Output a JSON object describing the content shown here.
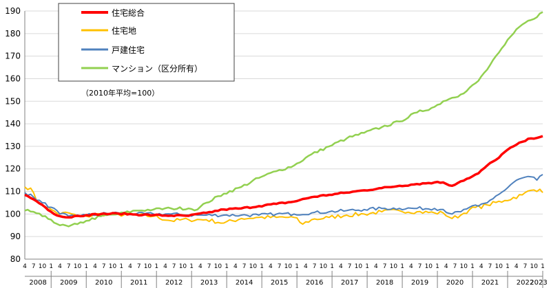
{
  "chart_data": {
    "type": "line",
    "title": "",
    "xlabel": "",
    "ylabel": "",
    "ylim": [
      80,
      190
    ],
    "yticks": [
      80,
      90,
      100,
      110,
      120,
      130,
      140,
      150,
      160,
      170,
      180,
      190
    ],
    "grid": "horizontal",
    "legend_position": "top-left",
    "note": "（2010年平均=100）",
    "month_tick_labels": [
      "4",
      "7",
      "10"
    ],
    "years": [
      "2008",
      "2009",
      "2010",
      "2011",
      "2012",
      "2013",
      "2014",
      "2015",
      "2016",
      "2017",
      "2018",
      "2019",
      "2020",
      "2021",
      "2022",
      "2023"
    ],
    "last_year_label": "2023",
    "last_year_month": "1",
    "x_start": "2008-04",
    "x_end": "2023-01",
    "series": [
      {
        "name": "住宅総合",
        "color": "#ff0000",
        "width": 3.5,
        "keypoints": [
          [
            "2008-04",
            108.5
          ],
          [
            "2008-07",
            106.5
          ],
          [
            "2008-10",
            104
          ],
          [
            "2009-01",
            101
          ],
          [
            "2009-04",
            99
          ],
          [
            "2009-07",
            98.5
          ],
          [
            "2009-10",
            99.2
          ],
          [
            "2010-01",
            99.5
          ],
          [
            "2010-06",
            100
          ],
          [
            "2010-12",
            100.2
          ],
          [
            "2011-06",
            99.8
          ],
          [
            "2011-12",
            99.5
          ],
          [
            "2012-06",
            99.3
          ],
          [
            "2012-12",
            99.2
          ],
          [
            "2013-06",
            100.5
          ],
          [
            "2013-12",
            102
          ],
          [
            "2014-06",
            102.5
          ],
          [
            "2014-12",
            103.5
          ],
          [
            "2015-06",
            104.5
          ],
          [
            "2015-12",
            105.5
          ],
          [
            "2016-06",
            107.5
          ],
          [
            "2016-12",
            108.5
          ],
          [
            "2017-06",
            109.5
          ],
          [
            "2017-12",
            110.5
          ],
          [
            "2018-06",
            111.5
          ],
          [
            "2018-12",
            112.5
          ],
          [
            "2019-06",
            113.3
          ],
          [
            "2019-12",
            114
          ],
          [
            "2020-03",
            114
          ],
          [
            "2020-06",
            112.5
          ],
          [
            "2020-09",
            114.5
          ],
          [
            "2020-12",
            116
          ],
          [
            "2021-03",
            118
          ],
          [
            "2021-06",
            121.5
          ],
          [
            "2021-09",
            124
          ],
          [
            "2021-12",
            127.5
          ],
          [
            "2022-03",
            130
          ],
          [
            "2022-06",
            132
          ],
          [
            "2022-09",
            133.5
          ],
          [
            "2023-01",
            134.5
          ]
        ]
      },
      {
        "name": "住宅地",
        "color": "#ffc000",
        "width": 2,
        "keypoints": [
          [
            "2008-04",
            112
          ],
          [
            "2008-06",
            111.5
          ],
          [
            "2008-08",
            106
          ],
          [
            "2008-10",
            104
          ],
          [
            "2009-01",
            102
          ],
          [
            "2009-04",
            100
          ],
          [
            "2009-07",
            100.5
          ],
          [
            "2009-10",
            99
          ],
          [
            "2010-01",
            99
          ],
          [
            "2010-06",
            100
          ],
          [
            "2010-12",
            99.8
          ],
          [
            "2011-06",
            99.5
          ],
          [
            "2011-12",
            99
          ],
          [
            "2012-06",
            97
          ],
          [
            "2012-12",
            97.5
          ],
          [
            "2013-06",
            97.5
          ],
          [
            "2013-12",
            96
          ],
          [
            "2014-06",
            98
          ],
          [
            "2014-12",
            98.5
          ],
          [
            "2015-06",
            98.5
          ],
          [
            "2015-12",
            98.5
          ],
          [
            "2016-03",
            95.5
          ],
          [
            "2016-06",
            97.5
          ],
          [
            "2016-12",
            98.5
          ],
          [
            "2017-06",
            99.5
          ],
          [
            "2017-12",
            100
          ],
          [
            "2018-06",
            101
          ],
          [
            "2018-12",
            101.5
          ],
          [
            "2019-06",
            101
          ],
          [
            "2019-12",
            100.5
          ],
          [
            "2020-03",
            100.5
          ],
          [
            "2020-06",
            98
          ],
          [
            "2020-09",
            99.5
          ],
          [
            "2020-12",
            102
          ],
          [
            "2021-06",
            104
          ],
          [
            "2021-12",
            106
          ],
          [
            "2022-06",
            108.5
          ],
          [
            "2022-09",
            110.5
          ],
          [
            "2022-12",
            111
          ],
          [
            "2023-01",
            109.5
          ]
        ]
      },
      {
        "name": "戸建住宅",
        "color": "#4f81bd",
        "width": 2,
        "keypoints": [
          [
            "2008-04",
            109.5
          ],
          [
            "2008-07",
            107.5
          ],
          [
            "2008-10",
            105
          ],
          [
            "2009-01",
            103
          ],
          [
            "2009-04",
            100
          ],
          [
            "2009-07",
            99
          ],
          [
            "2009-10",
            99.5
          ],
          [
            "2010-01",
            99.5
          ],
          [
            "2010-06",
            100
          ],
          [
            "2010-12",
            100.5
          ],
          [
            "2011-06",
            100
          ],
          [
            "2011-12",
            100
          ],
          [
            "2012-06",
            100
          ],
          [
            "2012-12",
            99.5
          ],
          [
            "2013-06",
            99.5
          ],
          [
            "2013-12",
            99.5
          ],
          [
            "2014-06",
            99.5
          ],
          [
            "2014-12",
            99.5
          ],
          [
            "2015-06",
            100
          ],
          [
            "2015-12",
            100
          ],
          [
            "2016-06",
            100.5
          ],
          [
            "2016-12",
            101
          ],
          [
            "2017-06",
            101.5
          ],
          [
            "2017-12",
            102
          ],
          [
            "2018-06",
            102.5
          ],
          [
            "2018-12",
            102.5
          ],
          [
            "2019-06",
            102.5
          ],
          [
            "2019-12",
            102.5
          ],
          [
            "2020-03",
            102
          ],
          [
            "2020-06",
            100
          ],
          [
            "2020-09",
            101
          ],
          [
            "2020-12",
            103
          ],
          [
            "2021-03",
            103.5
          ],
          [
            "2021-06",
            105
          ],
          [
            "2021-09",
            108
          ],
          [
            "2021-12",
            110.5
          ],
          [
            "2022-03",
            114
          ],
          [
            "2022-06",
            116
          ],
          [
            "2022-09",
            116.5
          ],
          [
            "2022-11",
            115
          ],
          [
            "2023-01",
            117.5
          ]
        ]
      },
      {
        "name": "マンション（区分所有）",
        "color": "#92d050",
        "width": 2.5,
        "keypoints": [
          [
            "2008-04",
            101.5
          ],
          [
            "2008-07",
            101
          ],
          [
            "2008-10",
            99
          ],
          [
            "2009-01",
            97.5
          ],
          [
            "2009-04",
            95
          ],
          [
            "2009-07",
            94.5
          ],
          [
            "2009-10",
            95.5
          ],
          [
            "2010-01",
            97
          ],
          [
            "2010-06",
            99
          ],
          [
            "2010-12",
            100
          ],
          [
            "2011-06",
            101.5
          ],
          [
            "2011-12",
            102
          ],
          [
            "2012-06",
            102.5
          ],
          [
            "2012-12",
            102.5
          ],
          [
            "2013-03",
            102
          ],
          [
            "2013-06",
            105
          ],
          [
            "2013-12",
            109
          ],
          [
            "2014-06",
            112
          ],
          [
            "2014-12",
            116
          ],
          [
            "2015-06",
            119
          ],
          [
            "2015-12",
            121.5
          ],
          [
            "2016-06",
            126.5
          ],
          [
            "2016-12",
            130
          ],
          [
            "2017-06",
            133.5
          ],
          [
            "2017-12",
            136
          ],
          [
            "2018-06",
            138.5
          ],
          [
            "2018-12",
            141
          ],
          [
            "2019-06",
            145
          ],
          [
            "2019-12",
            147.5
          ],
          [
            "2020-03",
            150
          ],
          [
            "2020-06",
            151.5
          ],
          [
            "2020-09",
            153
          ],
          [
            "2020-12",
            156
          ],
          [
            "2021-03",
            159
          ],
          [
            "2021-06",
            164
          ],
          [
            "2021-09",
            170
          ],
          [
            "2021-12",
            175
          ],
          [
            "2022-03",
            180
          ],
          [
            "2022-06",
            184
          ],
          [
            "2022-09",
            186
          ],
          [
            "2023-01",
            189.5
          ]
        ]
      }
    ]
  }
}
